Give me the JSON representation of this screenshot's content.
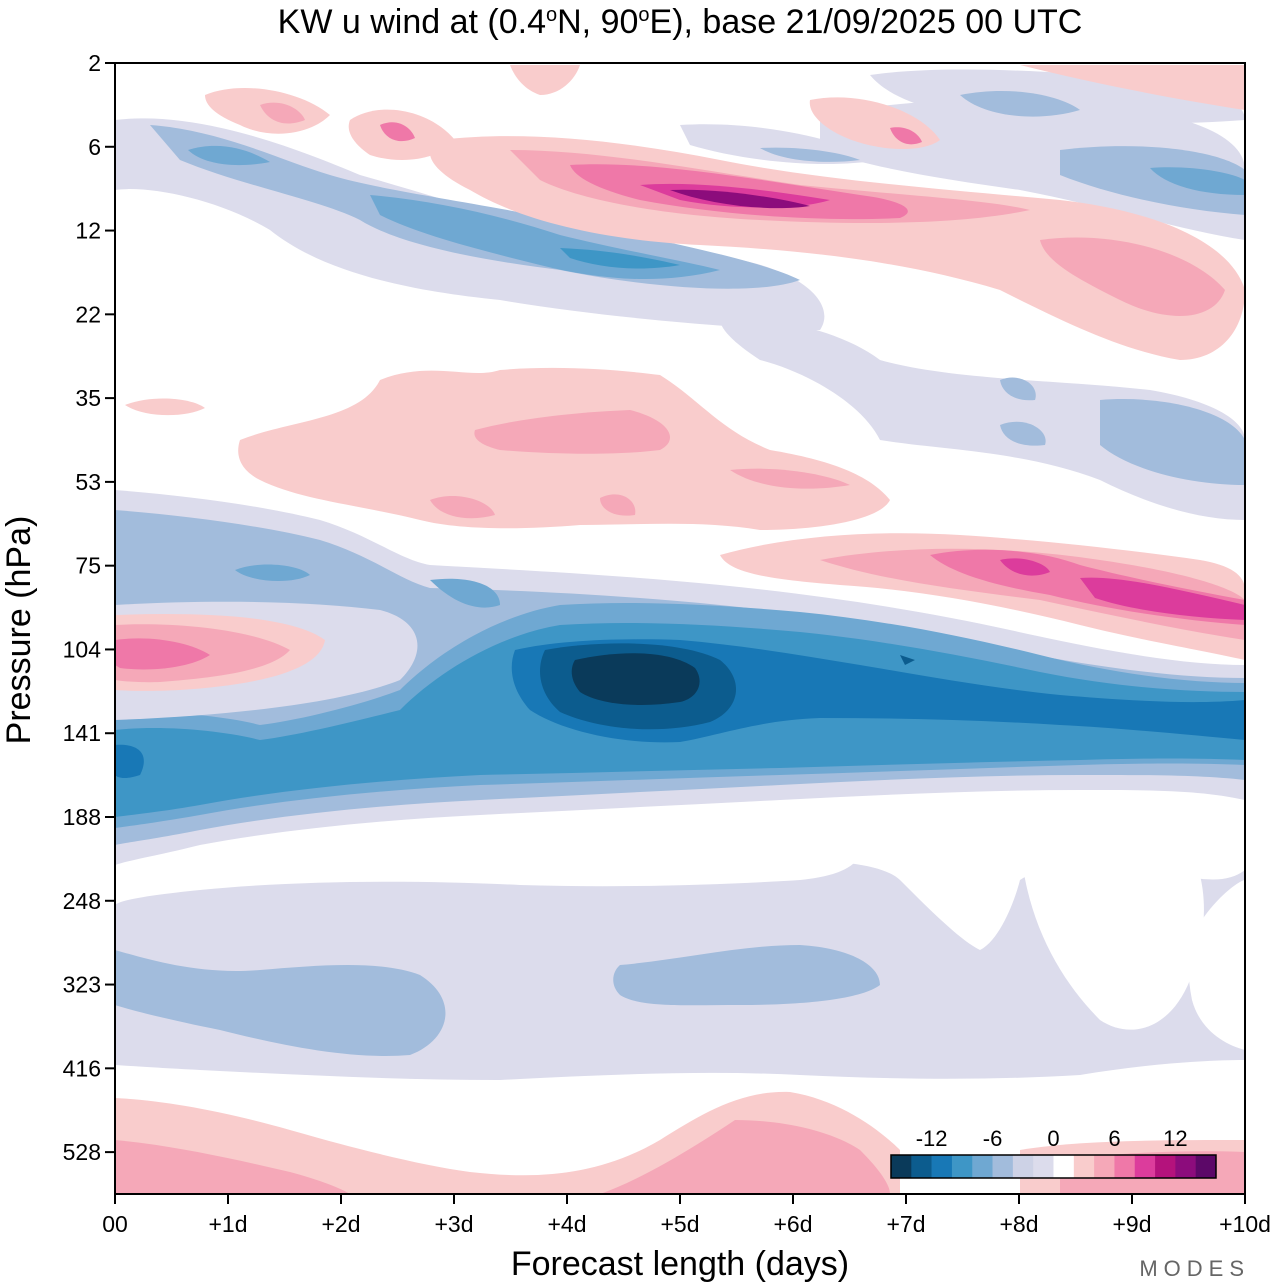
{
  "chart_data": {
    "type": "heatmap",
    "title_prefix": "KW u wind at (0.4",
    "title_deg1": "o",
    "title_mid": "N, 90",
    "title_deg2": "o",
    "title_suffix": "E),  base 21/09/2025  00 UTC",
    "xlabel": "Forecast length (days)",
    "ylabel": "Pressure (hPa)",
    "x_ticks": [
      "00",
      "+1d",
      "+2d",
      "+3d",
      "+4d",
      "+5d",
      "+6d",
      "+7d",
      "+8d",
      "+9d",
      "+10d"
    ],
    "x_range_days": [
      0,
      10
    ],
    "y_ticks": [
      "2",
      "6",
      "12",
      "22",
      "35",
      "53",
      "75",
      "104",
      "141",
      "188",
      "248",
      "323",
      "416",
      "528"
    ],
    "colorbar": {
      "tick_labels": [
        "-12",
        "-6",
        "0",
        "6",
        "12"
      ],
      "levels": [
        -14,
        -12,
        -10,
        -8,
        -6,
        -4,
        -2,
        0,
        2,
        4,
        6,
        8,
        10,
        12,
        14
      ],
      "colors": [
        "#0a3a5a",
        "#0c5c8e",
        "#1878b6",
        "#3e96c6",
        "#6fa8d2",
        "#a2bcdc",
        "#cdd2e6",
        "#dcdcec",
        "#ffffff",
        "#f9cccc",
        "#f5a8b8",
        "#ef78a8",
        "#dc3c9c",
        "#b4127c",
        "#8c0c7c",
        "#5c0868"
      ]
    },
    "features": [
      {
        "name": "easterly-max-100hPa",
        "level_hPa": 110,
        "day": 4.6,
        "value_approx": -14
      },
      {
        "name": "easterly-core-141hPa",
        "level_hPa": 141,
        "day": 0,
        "value_approx": -10
      },
      {
        "name": "westerly-core-9hPa",
        "level_hPa": 9,
        "day": 5.5,
        "value_approx": 14
      },
      {
        "name": "westerly-band-80hPa",
        "level_hPa": 80,
        "day": 9.0,
        "value_approx": 12
      },
      {
        "name": "westerly-104hPa",
        "level_hPa": 104,
        "day": 0.5,
        "value_approx": 8
      }
    ]
  },
  "watermark": "MODES"
}
